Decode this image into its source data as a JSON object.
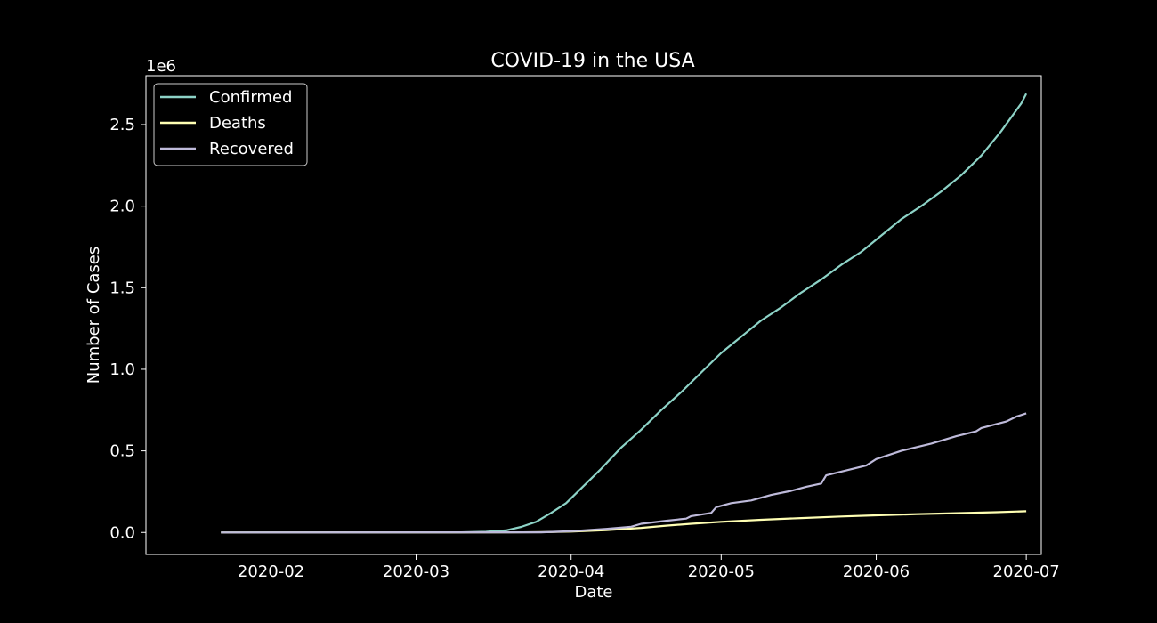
{
  "chart_data": {
    "type": "line",
    "title": "COVID-19 in the USA",
    "xlabel": "Date",
    "ylabel": "Number of Cases",
    "y_multiplier_label": "1e6",
    "x_range": [
      "2020-01-07",
      "2020-07-04"
    ],
    "ylim": [
      -0.135,
      2.8
    ],
    "x_ticks": [
      "2020-02",
      "2020-03",
      "2020-04",
      "2020-05",
      "2020-06",
      "2020-07"
    ],
    "y_ticks": [
      "0.0",
      "0.5",
      "1.0",
      "1.5",
      "2.0",
      "2.5"
    ],
    "y_unit": "millions (1e6)",
    "grid": false,
    "legend_position": "upper-left",
    "background": "#000000",
    "foreground": "#ffffff",
    "series": [
      {
        "name": "Confirmed",
        "color": "#8dd3c7",
        "points": [
          [
            "2020-01-22",
            0
          ],
          [
            "2020-03-01",
            0.0001
          ],
          [
            "2020-03-10",
            0.001
          ],
          [
            "2020-03-15",
            0.004
          ],
          [
            "2020-03-19",
            0.013
          ],
          [
            "2020-03-22",
            0.034
          ],
          [
            "2020-03-25",
            0.065
          ],
          [
            "2020-03-28",
            0.12
          ],
          [
            "2020-03-31",
            0.18
          ],
          [
            "2020-04-03",
            0.27
          ],
          [
            "2020-04-07",
            0.39
          ],
          [
            "2020-04-11",
            0.52
          ],
          [
            "2020-04-15",
            0.63
          ],
          [
            "2020-04-19",
            0.75
          ],
          [
            "2020-04-23",
            0.86
          ],
          [
            "2020-04-27",
            0.98
          ],
          [
            "2020-05-01",
            1.1
          ],
          [
            "2020-05-05",
            1.2
          ],
          [
            "2020-05-09",
            1.3
          ],
          [
            "2020-05-13",
            1.38
          ],
          [
            "2020-05-17",
            1.47
          ],
          [
            "2020-05-21",
            1.55
          ],
          [
            "2020-05-25",
            1.64
          ],
          [
            "2020-05-29",
            1.72
          ],
          [
            "2020-06-02",
            1.82
          ],
          [
            "2020-06-06",
            1.92
          ],
          [
            "2020-06-10",
            2.0
          ],
          [
            "2020-06-14",
            2.09
          ],
          [
            "2020-06-18",
            2.19
          ],
          [
            "2020-06-22",
            2.31
          ],
          [
            "2020-06-26",
            2.46
          ],
          [
            "2020-06-30",
            2.63
          ],
          [
            "2020-07-01",
            2.69
          ]
        ]
      },
      {
        "name": "Deaths",
        "color": "#ffffb3",
        "points": [
          [
            "2020-01-22",
            0
          ],
          [
            "2020-03-20",
            0.0003
          ],
          [
            "2020-03-27",
            0.002
          ],
          [
            "2020-04-01",
            0.005
          ],
          [
            "2020-04-08",
            0.014
          ],
          [
            "2020-04-15",
            0.028
          ],
          [
            "2020-04-20",
            0.042
          ],
          [
            "2020-04-25",
            0.053
          ],
          [
            "2020-05-01",
            0.065
          ],
          [
            "2020-05-09",
            0.078
          ],
          [
            "2020-05-17",
            0.088
          ],
          [
            "2020-05-25",
            0.098
          ],
          [
            "2020-06-01",
            0.105
          ],
          [
            "2020-06-09",
            0.112
          ],
          [
            "2020-06-17",
            0.118
          ],
          [
            "2020-06-25",
            0.124
          ],
          [
            "2020-07-01",
            0.13
          ]
        ]
      },
      {
        "name": "Recovered",
        "color": "#bebada",
        "points": [
          [
            "2020-01-22",
            0
          ],
          [
            "2020-03-26",
            0.001
          ],
          [
            "2020-04-01",
            0.008
          ],
          [
            "2020-04-08",
            0.022
          ],
          [
            "2020-04-13",
            0.035
          ],
          [
            "2020-04-15",
            0.053
          ],
          [
            "2020-04-20",
            0.072
          ],
          [
            "2020-04-24",
            0.085
          ],
          [
            "2020-04-25",
            0.1
          ],
          [
            "2020-04-29",
            0.12
          ],
          [
            "2020-04-30",
            0.155
          ],
          [
            "2020-05-03",
            0.18
          ],
          [
            "2020-05-07",
            0.196
          ],
          [
            "2020-05-11",
            0.23
          ],
          [
            "2020-05-15",
            0.255
          ],
          [
            "2020-05-18",
            0.28
          ],
          [
            "2020-05-21",
            0.3
          ],
          [
            "2020-05-22",
            0.35
          ],
          [
            "2020-05-26",
            0.38
          ],
          [
            "2020-05-30",
            0.41
          ],
          [
            "2020-06-01",
            0.45
          ],
          [
            "2020-06-06",
            0.5
          ],
          [
            "2020-06-12",
            0.545
          ],
          [
            "2020-06-17",
            0.59
          ],
          [
            "2020-06-21",
            0.62
          ],
          [
            "2020-06-22",
            0.64
          ],
          [
            "2020-06-27",
            0.68
          ],
          [
            "2020-06-29",
            0.71
          ],
          [
            "2020-07-01",
            0.73
          ]
        ]
      }
    ]
  }
}
